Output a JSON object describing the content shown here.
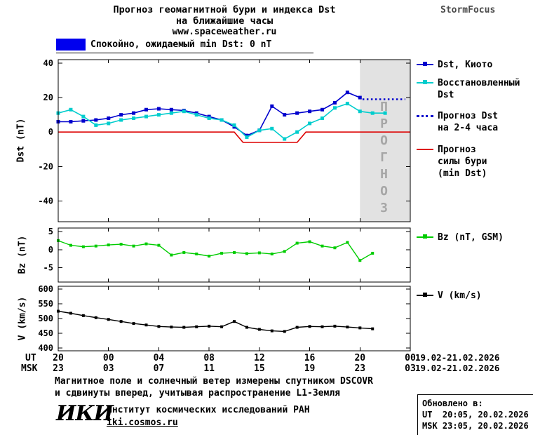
{
  "header": {
    "title_line1": "Прогноз геомагнитной бури и индекса Dst",
    "title_line2": "на ближайшие часы",
    "site_url": "www.spaceweather.ru",
    "brand": "StormFocus"
  },
  "status_banner": {
    "label": "Спокойно, ожидаемый min Dst: 0 nT",
    "box_color": "#0000ee"
  },
  "forecast_watermark": "ПРОГНОЗ",
  "axes": {
    "ut_label": "UT",
    "msk_label": "MSK",
    "tick_hours": [
      0,
      4,
      8,
      12,
      16,
      20,
      24,
      28
    ],
    "ut_ticks": [
      "20",
      "00",
      "04",
      "08",
      "12",
      "16",
      "20",
      "00"
    ],
    "msk_ticks": [
      "23",
      "03",
      "07",
      "11",
      "15",
      "19",
      "23",
      "03"
    ],
    "ut_date_range": "19.02-21.02.2026",
    "msk_date_range": "19.02-21.02.2026"
  },
  "legend": [
    {
      "id": "dst-kyoto",
      "lines": [
        "Dst, Киото"
      ],
      "color": "#0000cd",
      "style": "solid",
      "marker": true
    },
    {
      "id": "restored-dst",
      "lines": [
        "Восстановленный",
        "Dst"
      ],
      "color": "#00cdcd",
      "style": "solid",
      "marker": true
    },
    {
      "id": "forecast-dst",
      "lines": [
        "Прогноз Dst",
        "на 2-4 часа"
      ],
      "color": "#0000cd",
      "style": "dotted",
      "marker": false
    },
    {
      "id": "forecast-storm",
      "lines": [
        "Прогноз",
        "силы бури",
        "(min Dst)"
      ],
      "color": "#dd0000",
      "style": "solid",
      "marker": false
    },
    {
      "id": "bz",
      "lines": [
        "Bz (nT, GSM)"
      ],
      "color": "#00cc00",
      "style": "solid",
      "marker": true
    },
    {
      "id": "v",
      "lines": [
        "V (km/s)"
      ],
      "color": "#000000",
      "style": "solid",
      "marker": true
    }
  ],
  "chart_data": [
    {
      "type": "line",
      "title": "Прогноз геомагнитной бури и индекса Dst на ближайшие часы",
      "ylabel": "Dst (nT)",
      "ylim": [
        -52,
        42
      ],
      "yticks": [
        40,
        20,
        0,
        -20,
        -40
      ],
      "xlim": [
        0,
        28
      ],
      "x_unit": "hours from 20:00 UT 19.02.2026",
      "forecast_region_hours": [
        24,
        28
      ],
      "series": [
        {
          "id": "dst-kyoto-series",
          "name": "Dst, Киото",
          "color": "#0000cd",
          "marker": "square",
          "msize": 5,
          "width": 1.6,
          "x": [
            0,
            1,
            2,
            3,
            4,
            5,
            6,
            7,
            8,
            9,
            10,
            11,
            12,
            13,
            14,
            15,
            16,
            17,
            18,
            19,
            20,
            21,
            22,
            23,
            24
          ],
          "y": [
            6,
            6,
            6.5,
            7,
            8,
            10,
            11,
            13,
            13.5,
            13,
            12.5,
            11,
            9,
            7,
            3,
            -2,
            1,
            15,
            10,
            11,
            12,
            13,
            17,
            23,
            20
          ]
        },
        {
          "id": "restored-dst-series",
          "name": "Восстановленный Dst",
          "color": "#00cdcd",
          "marker": "square",
          "msize": 5,
          "width": 1.6,
          "x": [
            0,
            1,
            2,
            3,
            4,
            5,
            6,
            7,
            8,
            9,
            10,
            11,
            12,
            13,
            14,
            15,
            16,
            17,
            18,
            19,
            20,
            21,
            22,
            23,
            24,
            25,
            26
          ],
          "y": [
            11,
            13,
            9,
            4,
            5,
            7,
            8,
            9,
            10,
            11,
            12,
            10,
            8,
            7,
            4,
            -3,
            1,
            2,
            -4,
            0,
            5,
            8,
            14,
            16.5,
            12,
            11,
            11
          ]
        },
        {
          "id": "forecast-dst-series",
          "name": "Прогноз Dst на 2-4 часа",
          "color": "#0000cd",
          "style": "dotted",
          "width": 2.6,
          "x": [
            24.2,
            27.6
          ],
          "y": [
            19,
            19
          ]
        },
        {
          "id": "forecast-storm-series",
          "name": "Прогноз силы бури (min Dst)",
          "color": "#dd0000",
          "width": 1.6,
          "x": [
            0,
            14,
            14.7,
            19,
            19.7,
            28
          ],
          "y": [
            0,
            0,
            -6,
            -6,
            0,
            0
          ]
        }
      ]
    },
    {
      "type": "line",
      "ylabel": "Bz (nT)",
      "ylim": [
        -9,
        6
      ],
      "yticks": [
        5,
        0,
        -5
      ],
      "xlim": [
        0,
        28
      ],
      "series": [
        {
          "id": "bz-series",
          "name": "Bz (nT, GSM)",
          "color": "#00cc00",
          "marker": "square",
          "msize": 4,
          "width": 1.4,
          "x": [
            0,
            1,
            2,
            3,
            4,
            5,
            6,
            7,
            8,
            9,
            10,
            11,
            12,
            13,
            14,
            15,
            16,
            17,
            18,
            19,
            20,
            21,
            22,
            23,
            24,
            25
          ],
          "y": [
            2.5,
            1.2,
            0.8,
            1.0,
            1.3,
            1.5,
            1.0,
            1.6,
            1.2,
            -1.5,
            -0.8,
            -1.2,
            -1.8,
            -1.0,
            -0.8,
            -1.1,
            -0.9,
            -1.2,
            -0.5,
            1.8,
            2.2,
            1.0,
            0.5,
            2.0,
            -3.0,
            -1.0
          ]
        }
      ]
    },
    {
      "type": "line",
      "ylabel": "V (km/s)",
      "ylim": [
        390,
        610
      ],
      "yticks": [
        600,
        550,
        500,
        450,
        400
      ],
      "xlim": [
        0,
        28
      ],
      "series": [
        {
          "id": "v-series",
          "name": "V (km/s)",
          "color": "#000000",
          "marker": "square",
          "msize": 4,
          "width": 1.4,
          "x": [
            0,
            1,
            2,
            3,
            4,
            5,
            6,
            7,
            8,
            9,
            10,
            11,
            12,
            13,
            14,
            15,
            16,
            17,
            18,
            19,
            20,
            21,
            22,
            23,
            24,
            25
          ],
          "y": [
            525,
            518,
            510,
            503,
            497,
            490,
            483,
            478,
            473,
            471,
            470,
            472,
            474,
            472,
            490,
            470,
            463,
            458,
            456,
            470,
            473,
            472,
            474,
            471,
            468,
            465
          ]
        }
      ]
    }
  ],
  "footer": {
    "note_line1": "Магнитное поле и солнечный ветер измерены спутником DSCOVR",
    "note_line2": "и сдвинуты вперед, учитывая распространение L1-Земля",
    "logo_text": "ИКИ",
    "institute": "Институт космических исследований РАН",
    "institute_url": "iki.cosmos.ru",
    "updated_label": "Обновлено в:",
    "updated_ut": "UT  20:05, 20.02.2026",
    "updated_msk": "MSK 23:05, 20.02.2026"
  }
}
